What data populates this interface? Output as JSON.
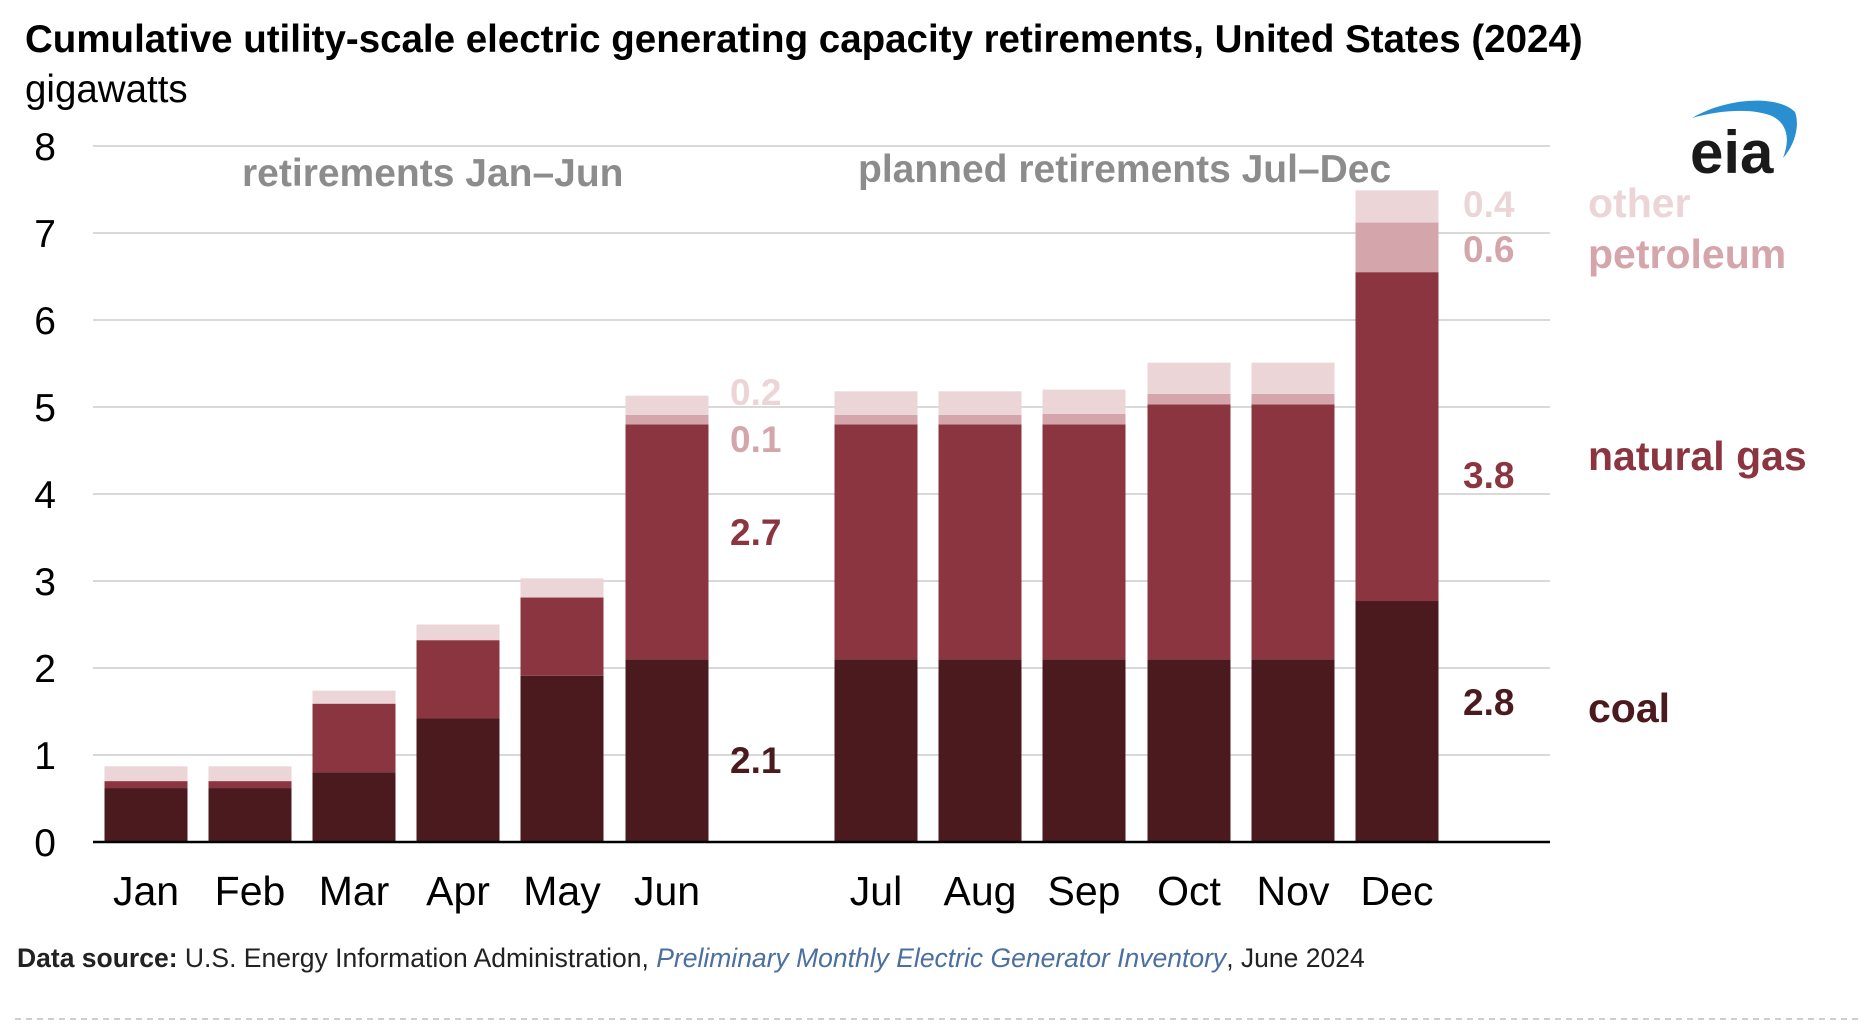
{
  "chart_data": {
    "type": "bar",
    "stacked": true,
    "title": "Cumulative utility-scale electric generating capacity retirements, United States (2024)",
    "subtitle": "gigawatts",
    "ylim": [
      0,
      8
    ],
    "yticks": [
      "0",
      "1",
      "2",
      "3",
      "4",
      "5",
      "6",
      "7",
      "8"
    ],
    "grid": true,
    "categories": [
      "Jan",
      "Feb",
      "Mar",
      "Apr",
      "May",
      "Jun",
      "Jul",
      "Aug",
      "Sep",
      "Oct",
      "Nov",
      "Dec"
    ],
    "series": [
      {
        "name": "coal",
        "color": "#4a1a1f",
        "values": [
          0.62,
          0.62,
          0.8,
          1.42,
          1.91,
          2.1,
          2.1,
          2.1,
          2.1,
          2.1,
          2.1,
          2.77
        ]
      },
      {
        "name": "natural gas",
        "color": "#8b3540",
        "values": [
          0.08,
          0.08,
          0.79,
          0.9,
          0.9,
          2.7,
          2.7,
          2.7,
          2.7,
          2.93,
          2.93,
          3.78
        ]
      },
      {
        "name": "petroleum",
        "color": "#d4a5ab",
        "values": [
          0.0,
          0.0,
          0.0,
          0.0,
          0.0,
          0.11,
          0.11,
          0.11,
          0.12,
          0.12,
          0.12,
          0.57
        ]
      },
      {
        "name": "other",
        "color": "#ebd5d7",
        "values": [
          0.17,
          0.17,
          0.15,
          0.18,
          0.22,
          0.22,
          0.27,
          0.27,
          0.28,
          0.36,
          0.36,
          0.37
        ]
      }
    ],
    "annotations": {
      "first_half": "retirements Jan–Jun",
      "second_half": "planned retirements Jul–Dec"
    },
    "value_labels": {
      "jun": {
        "coal": "2.1",
        "natural_gas": "2.7",
        "petroleum": "0.1",
        "other": "0.2"
      },
      "dec": {
        "coal": "2.8",
        "natural_gas": "3.8",
        "petroleum": "0.6",
        "other": "0.4"
      }
    },
    "legend": {
      "placement": "right",
      "other": "other",
      "petroleum": "petroleum",
      "natural_gas": "natural gas",
      "coal": "coal"
    }
  },
  "logo": {
    "text": "eia"
  },
  "source": {
    "label": "Data source:",
    "agency": " U.S. Energy Information Administration, ",
    "publication": "Preliminary Monthly Electric Generator Inventory",
    "date": ", June 2024"
  }
}
